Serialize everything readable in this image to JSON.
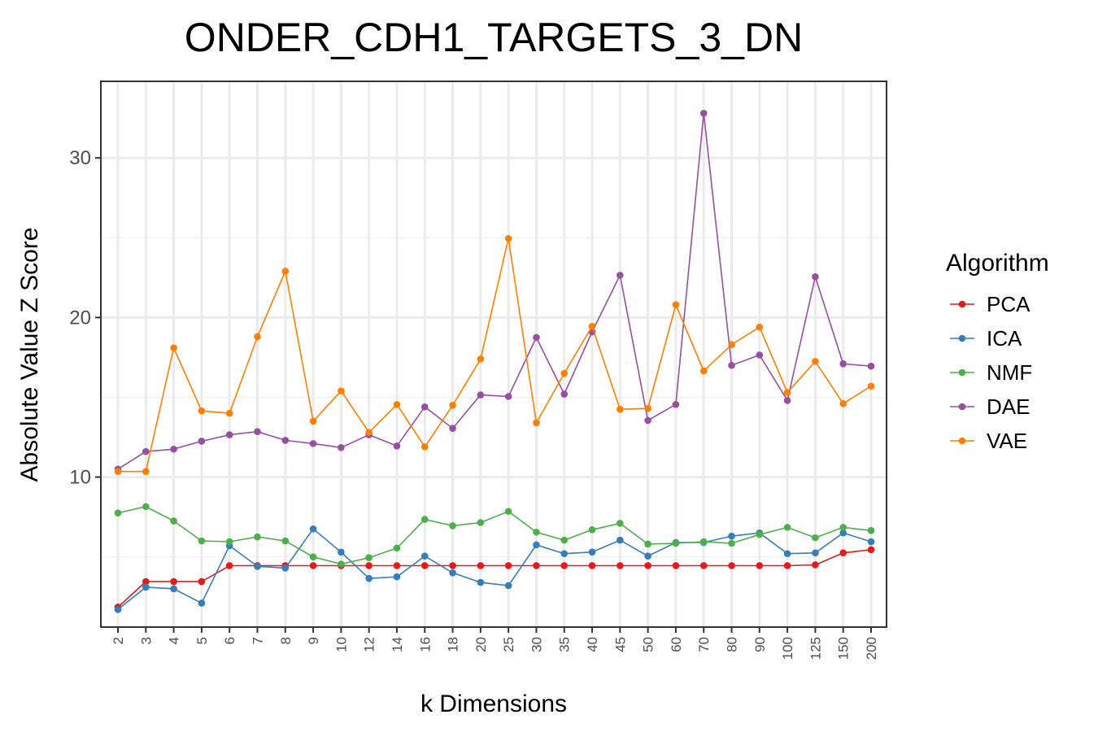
{
  "chart_data": {
    "type": "line",
    "title": "ONDER_CDH1_TARGETS_3_DN",
    "xlabel": "k Dimensions",
    "ylabel": "Absolute Value Z Score",
    "categories": [
      "2",
      "3",
      "4",
      "5",
      "6",
      "7",
      "8",
      "9",
      "10",
      "12",
      "14",
      "16",
      "18",
      "20",
      "25",
      "30",
      "35",
      "40",
      "45",
      "50",
      "60",
      "70",
      "80",
      "90",
      "100",
      "125",
      "150",
      "200"
    ],
    "yticks": [
      10,
      20,
      30
    ],
    "ylim": [
      0.6,
      34.8
    ],
    "grid": true,
    "legend": {
      "title": "Algorithm",
      "position": "right"
    },
    "series": [
      {
        "name": "PCA",
        "color": "#e41a1c",
        "values": [
          1.85,
          3.45,
          3.45,
          3.45,
          4.45,
          4.45,
          4.45,
          4.45,
          4.45,
          4.45,
          4.45,
          4.45,
          4.45,
          4.45,
          4.45,
          4.45,
          4.45,
          4.45,
          4.45,
          4.45,
          4.45,
          4.45,
          4.45,
          4.45,
          4.45,
          4.5,
          5.25,
          5.45
        ]
      },
      {
        "name": "ICA",
        "color": "#377eb8",
        "values": [
          1.7,
          3.1,
          3.0,
          2.1,
          5.7,
          4.4,
          4.3,
          6.75,
          5.3,
          3.65,
          3.75,
          5.05,
          4.0,
          3.4,
          3.2,
          5.75,
          5.2,
          5.3,
          6.05,
          5.05,
          5.9,
          5.9,
          6.3,
          6.5,
          5.2,
          5.25,
          6.5,
          5.95
        ]
      },
      {
        "name": "NMF",
        "color": "#4daf4a",
        "values": [
          7.75,
          8.15,
          7.25,
          6.0,
          5.95,
          6.25,
          6.0,
          5.0,
          4.55,
          4.95,
          5.55,
          7.35,
          6.95,
          7.15,
          7.85,
          6.55,
          6.05,
          6.7,
          7.1,
          5.8,
          5.85,
          5.95,
          5.85,
          6.4,
          6.85,
          6.2,
          6.85,
          6.65
        ]
      },
      {
        "name": "DAE",
        "color": "#984ea3",
        "values": [
          10.5,
          11.6,
          11.75,
          12.25,
          12.65,
          12.85,
          12.3,
          12.1,
          11.85,
          12.65,
          11.95,
          14.4,
          13.05,
          15.15,
          15.05,
          18.75,
          15.2,
          19.1,
          22.65,
          13.55,
          14.55,
          32.8,
          17.0,
          17.65,
          14.8,
          22.55,
          17.1,
          16.95
        ]
      },
      {
        "name": "VAE",
        "color": "#ff7f00",
        "values": [
          10.35,
          10.35,
          18.1,
          14.15,
          14.0,
          18.8,
          22.9,
          13.5,
          15.4,
          12.8,
          14.55,
          11.9,
          14.5,
          17.4,
          24.95,
          13.4,
          16.5,
          19.45,
          14.25,
          14.3,
          20.8,
          16.65,
          18.3,
          19.4,
          15.3,
          17.25,
          14.6,
          15.7
        ]
      }
    ]
  }
}
